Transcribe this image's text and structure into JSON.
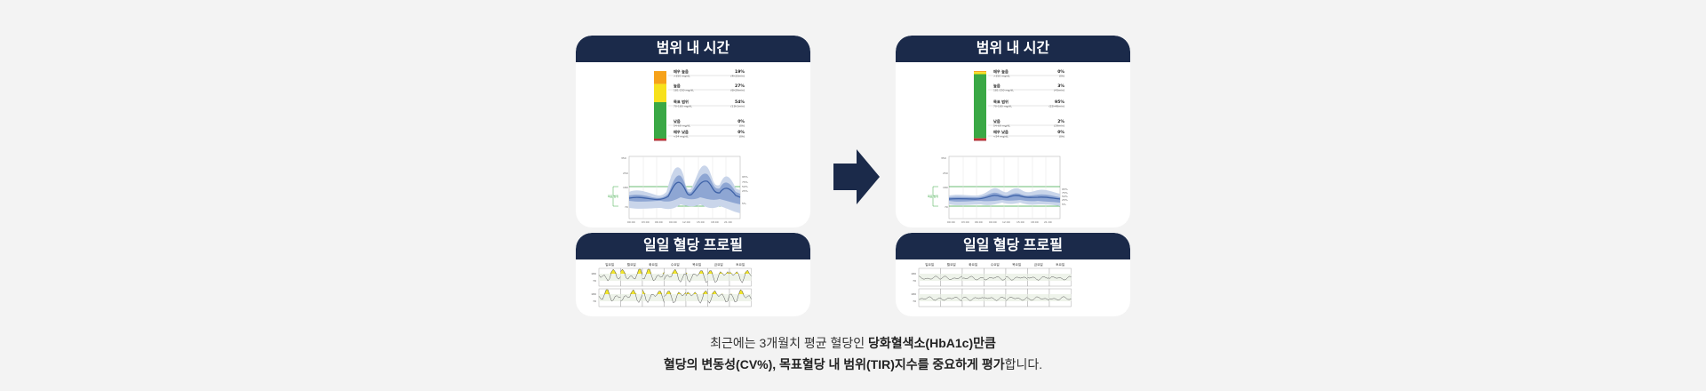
{
  "left": {
    "tir": {
      "title": "범위 내 시간",
      "rows": [
        {
          "label": "매우 높음",
          "sub": ">250 mg/dL",
          "pct": "19%",
          "pct_sub": "(4h33min)",
          "color": "#f6a21a"
        },
        {
          "label": "높음",
          "sub": "181-250 mg/dL",
          "pct": "27%",
          "pct_sub": "(6h29min)",
          "color": "#f7e11c"
        },
        {
          "label": "목표 범위",
          "sub": "70-180 mg/dL",
          "pct": "54%",
          "pct_sub": "(13h1min)",
          "color": "#3aa845"
        },
        {
          "label": "낮음",
          "sub": "54-69 mg/dL",
          "pct": "0%",
          "pct_sub": "(0h)",
          "color": "#e3262e"
        },
        {
          "label": "매우 낮음",
          "sub": "<54 mg/dL",
          "pct": "0%",
          "pct_sub": "(0h)",
          "color": "#a3141c"
        }
      ],
      "bar": [
        0.19,
        0.27,
        0.54,
        0.0,
        0.0
      ]
    },
    "daily": {
      "title": "일일 혈당 프로필"
    }
  },
  "right": {
    "tir": {
      "title": "범위 내 시간",
      "rows": [
        {
          "label": "매우 높음",
          "sub": ">250 mg/dL",
          "pct": "0%",
          "pct_sub": "(0h)",
          "color": "#f6a21a"
        },
        {
          "label": "높음",
          "sub": "181-250 mg/dL",
          "pct": "3%",
          "pct_sub": "(43min)",
          "color": "#f7e11c"
        },
        {
          "label": "목표 범위",
          "sub": "70-180 mg/dL",
          "pct": "95%",
          "pct_sub": "(22h48min)",
          "color": "#3aa845"
        },
        {
          "label": "낮음",
          "sub": "54-69 mg/dL",
          "pct": "2%",
          "pct_sub": "(29min)",
          "color": "#e3262e"
        },
        {
          "label": "매우 낮음",
          "sub": "<54 mg/dL",
          "pct": "0%",
          "pct_sub": "(0h)",
          "color": "#a3141c"
        }
      ],
      "bar": [
        0.0,
        0.03,
        0.95,
        0.02,
        0.0
      ]
    },
    "daily": {
      "title": "일일 혈당 프로필"
    }
  },
  "days": [
    "일요일",
    "월요일",
    "화요일",
    "수요일",
    "목요일",
    "금요일",
    "토요일"
  ],
  "caption": {
    "l1_a": "최근에는 3개월치 평균 혈당인 ",
    "l1_b": "당화혈색소(HbA1c)만큼",
    "l2_a": "혈당의 변동성(CV%), 목표혈당 내 범위(TIR)지수를 중요하게 평가",
    "l2_b": "합니다."
  },
  "colors": {
    "header": "#1b2a4a",
    "arrow": "#1b2a4a",
    "band_outer": "#c9d5ea",
    "band_inner": "#8ea6d3",
    "median": "#3f63a8",
    "target": "#3aa845"
  }
}
